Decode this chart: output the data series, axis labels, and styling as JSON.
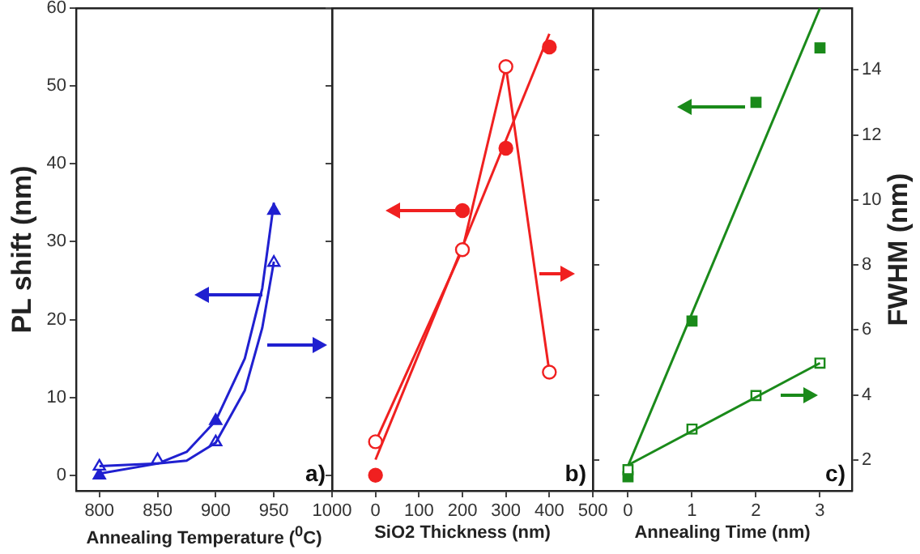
{
  "chart_data": [
    {
      "type": "line",
      "xlabel": "Annealing Temperature ($^{0}$C)",
      "ylabel": "PL shift (nm)",
      "xlim": [
        780,
        1000
      ],
      "xticks": [
        800,
        850,
        900,
        950,
        1000
      ],
      "ylim": [
        -2,
        60
      ],
      "yticks": [
        0,
        10,
        20,
        30,
        40,
        50,
        60
      ],
      "y2lim": [
        1.05,
        15.9
      ],
      "line_style": "solid",
      "annotations": [
        "a)"
      ],
      "series": [
        {
          "type": "scatter",
          "color": "#2020d0",
          "marker": "triangle",
          "x": [
            800,
            900,
            950
          ],
          "values": [
            0,
            7,
            34
          ]
        },
        {
          "type": "line",
          "color": "#2020d0",
          "marker": "none",
          "x": [
            800,
            850,
            875,
            900,
            925,
            940,
            950
          ],
          "values": [
            0.2,
            1.5,
            3,
            7,
            15,
            24,
            35
          ]
        },
        {
          "type": "scatter",
          "color": "#2020d0",
          "marker": "triangle",
          "axis": "y2",
          "x": [
            800,
            850,
            900,
            950
          ],
          "values": [
            1.8,
            2.0,
            2.55,
            8.07
          ]
        },
        {
          "type": "line",
          "color": "#2020d0",
          "marker": "none",
          "axis": "y2",
          "x": [
            800,
            850,
            875,
            900,
            925,
            940,
            950
          ],
          "values": [
            1.81,
            1.89,
            1.98,
            2.53,
            4.14,
            6.06,
            8.1
          ]
        }
      ]
    },
    {
      "type": "line",
      "xlabel": "SiO2 Thickness (nm)",
      "xlim": [
        -100,
        500
      ],
      "xticks": [
        0,
        100,
        200,
        300,
        400,
        500
      ],
      "ylim": [
        -2,
        60
      ],
      "yticks": [
        0,
        10,
        20,
        30,
        40,
        50,
        60
      ],
      "y2lim": [
        1.05,
        15.9
      ],
      "y2ticks": [
        2,
        4,
        6,
        8,
        10,
        12,
        14
      ],
      "tick_labels": "x",
      "line_style": "solid",
      "annotations": [
        "b)"
      ],
      "series": [
        {
          "type": "scatter",
          "color": "#f02020",
          "marker": "circle",
          "x": [
            0,
            200,
            300,
            400
          ],
          "values": [
            0,
            34,
            42,
            55
          ]
        },
        {
          "type": "line",
          "color": "#f02020",
          "marker": "none",
          "x": [
            0,
            400
          ],
          "values": [
            2,
            56.7
          ]
        },
        {
          "type": "line",
          "color": "#f02020",
          "marker": "circle",
          "axis": "y2",
          "x": [
            0,
            200,
            300,
            400
          ],
          "values": [
            2.56,
            8.47,
            14.1,
            4.7
          ]
        }
      ]
    },
    {
      "type": "line",
      "xlabel": "Annealing Time (nm)",
      "y2label": "FWHM (nm)",
      "xlim": [
        -0.55,
        3.5
      ],
      "xticks": [
        0,
        1,
        2,
        3
      ],
      "ylim": [
        -2,
        60
      ],
      "y2lim": [
        1.05,
        15.9
      ],
      "y2ticks": [
        2,
        4,
        6,
        8,
        10,
        12,
        14
      ],
      "line_style": "solid",
      "annotations": [
        "c)"
      ],
      "series": [
        {
          "type": "scatter",
          "color": "#1a8a1a",
          "marker": "square",
          "x": [
            0,
            1,
            2,
            3
          ],
          "values": [
            -0.2,
            19.8,
            47.9,
            54.9
          ]
        },
        {
          "type": "line",
          "color": "#1a8a1a",
          "marker": "none",
          "x": [
            0,
            3
          ],
          "values": [
            1.2,
            60
          ]
        },
        {
          "type": "scatter",
          "color": "#1a8a1a",
          "marker": "square",
          "axis": "y2",
          "x": [
            0,
            1,
            2,
            3
          ],
          "values": [
            1.7,
            2.95,
            3.98,
            4.98
          ]
        },
        {
          "type": "line",
          "color": "#1a8a1a",
          "marker": "none",
          "axis": "y2",
          "x": [
            0,
            3
          ],
          "values": [
            1.84,
            4.98
          ]
        }
      ]
    }
  ]
}
